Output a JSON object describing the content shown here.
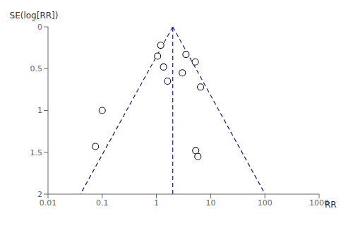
{
  "chart_data": {
    "type": "scatter",
    "xlabel": "RR",
    "ylabel": "SE(log[RR])",
    "log": "x",
    "grid": false,
    "xlim": [
      0.01,
      1000
    ],
    "xticks": [
      0.01,
      0.1,
      1,
      10,
      100,
      1000
    ],
    "ylim": [
      2,
      0
    ],
    "yticks": [
      0,
      0.5,
      1,
      1.5,
      2
    ],
    "x": [
      1.2,
      1.05,
      1.35,
      1.6,
      0.1,
      0.075,
      3.5,
      5.2,
      3.0,
      6.5,
      5.3,
      5.8
    ],
    "values": [
      0.22,
      0.35,
      0.48,
      0.65,
      1.0,
      1.43,
      0.33,
      0.42,
      0.55,
      0.72,
      1.48,
      1.55
    ],
    "color": "#111133",
    "marker": "circle",
    "reference_lines": [
      {
        "type": "segment",
        "x": [
          2.0,
          0.0396822
        ],
        "y": [
          0.0,
          2.0
        ],
        "color": "#1a1a7a",
        "line_style": "dashed"
      },
      {
        "type": "segment",
        "x": [
          2.0,
          100.80089
        ],
        "y": [
          0.0,
          2.0
        ],
        "color": "#1a1a7a",
        "line_style": "dashed"
      },
      {
        "type": "vline",
        "x": 2.0,
        "color": "#1a1a7a",
        "line_style": "dashed"
      }
    ]
  }
}
